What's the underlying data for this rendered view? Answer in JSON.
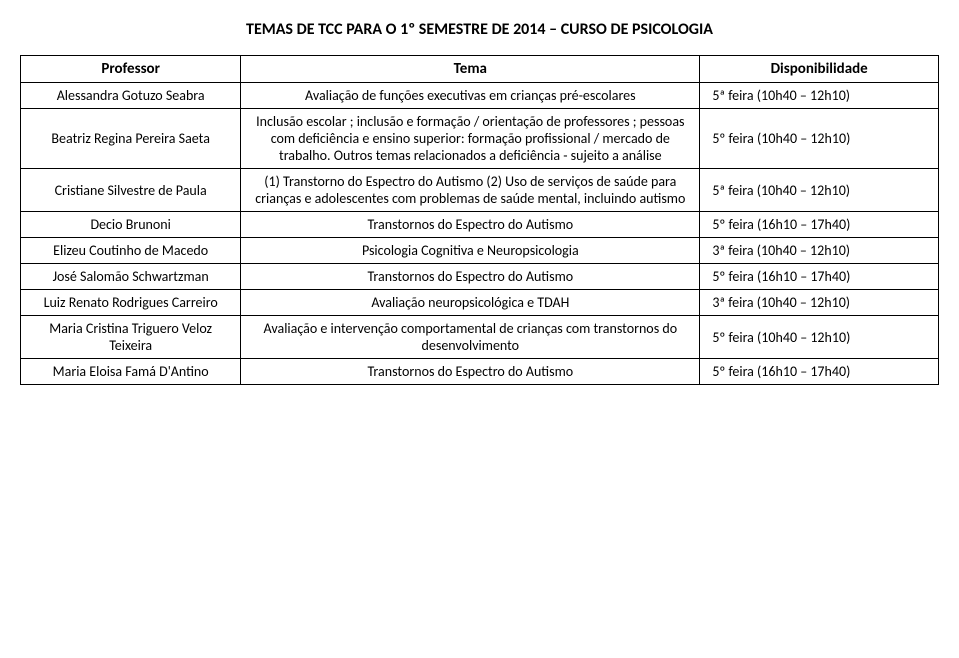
{
  "title": "TEMAS DE TCC PARA O 1º SEMESTRE DE 2014 – CURSO DE PSICOLOGIA",
  "columns": [
    "Professor",
    "Tema",
    "Disponibilidade"
  ],
  "rows": [
    {
      "professor": "Alessandra Gotuzo Seabra",
      "tema": "Avaliação de funções executivas em crianças pré-escolares",
      "disponibilidade": "5ª feira (10h40 – 12h10)"
    },
    {
      "professor": "Beatriz Regina Pereira Saeta",
      "tema": "Inclusão escolar ; inclusão e formação / orientação de professores ; pessoas com deficiência e ensino superior: formação profissional / mercado de trabalho. Outros temas relacionados a deficiência - sujeito a análise",
      "disponibilidade": "5º feira (10h40 – 12h10)"
    },
    {
      "professor": "Cristiane Silvestre de Paula",
      "tema": "(1) Transtorno do Espectro do Autismo (2) Uso de serviços de saúde para crianças e adolescentes com problemas de saúde mental, incluindo autismo",
      "disponibilidade": "5ª feira (10h40 – 12h10)"
    },
    {
      "professor": "Decio Brunoni",
      "tema": "Transtornos do Espectro do Autismo",
      "disponibilidade": "5º feira (16h10 – 17h40)"
    },
    {
      "professor": "Elizeu Coutinho de Macedo",
      "tema": "Psicologia Cognitiva e Neuropsicologia",
      "disponibilidade": "3ª feira (10h40 – 12h10)"
    },
    {
      "professor": "José Salomão Schwartzman",
      "tema": "Transtornos do Espectro do Autismo",
      "disponibilidade": "5º feira (16h10 – 17h40)"
    },
    {
      "professor": "Luiz Renato Rodrigues Carreiro",
      "tema": "Avaliação neuropsicológica e TDAH",
      "disponibilidade": "3ª feira (10h40 – 12h10)"
    },
    {
      "professor": "Maria Cristina Triguero Veloz Teixeira",
      "tema": "Avaliação e intervenção comportamental de crianças com transtornos do desenvolvimento",
      "disponibilidade": "5º feira (10h40 – 12h10)"
    },
    {
      "professor": "Maria Eloisa Famá D'Antino",
      "tema": "Transtornos do Espectro do Autismo",
      "disponibilidade": "5º feira (16h10 – 17h40)"
    }
  ],
  "style": {
    "background_color": "#ffffff",
    "text_color": "#000000",
    "border_color": "#000000",
    "title_fontsize_pt": 12,
    "header_fontsize_pt": 11,
    "body_fontsize_pt": 10.5,
    "font_family": "Calibri"
  }
}
